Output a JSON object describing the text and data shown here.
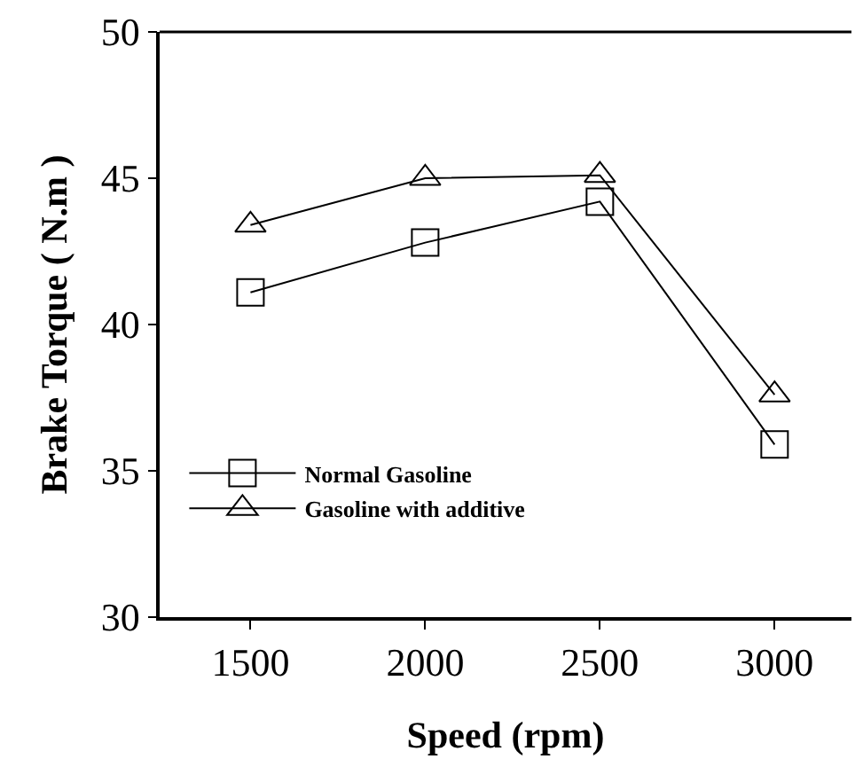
{
  "chart_data": {
    "type": "line",
    "xlabel": "Speed (rpm)",
    "ylabel": "Brake Torque ( N.m )",
    "x": [
      1500,
      2000,
      2500,
      3000
    ],
    "series": [
      {
        "name": "Normal Gasoline",
        "color": "#000000",
        "marker": "square",
        "values": [
          41.1,
          42.8,
          44.2,
          35.9
        ]
      },
      {
        "name": "Gasoline with additive",
        "color": "#000000",
        "marker": "triangle",
        "values": [
          43.4,
          45.0,
          45.1,
          37.6
        ]
      }
    ],
    "xlim": [
      1240,
      3220
    ],
    "xticks": [
      1500,
      2000,
      2500,
      3000
    ],
    "ylim": [
      30,
      50
    ],
    "yticks": [
      30,
      35,
      40,
      45,
      50
    ],
    "grid": false,
    "legend": "bottom left",
    "line_style": "solid"
  }
}
